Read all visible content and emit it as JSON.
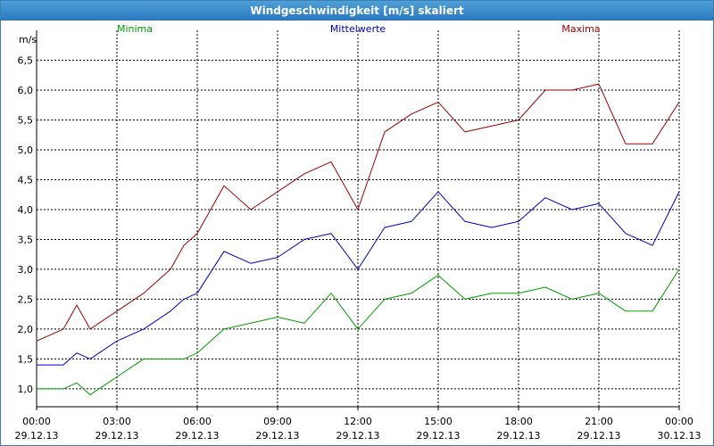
{
  "window": {
    "title": "Windgeschwindigkeit [m/s] skaliert"
  },
  "colors": {
    "minima": "#00a000",
    "mittelwerte": "#0000c8",
    "maxima": "#a00000",
    "grid": "#000000"
  },
  "chart_data": {
    "type": "line",
    "title": "Windgeschwindigkeit [m/s] skaliert",
    "ylabel": "m/s",
    "xlabel": "",
    "ylim": [
      0.7,
      7.0
    ],
    "xlim_hours": [
      0,
      24
    ],
    "grid": true,
    "legend_placement": "top",
    "y_ticks": [
      "1,0",
      "1,5",
      "2,0",
      "2,5",
      "3,0",
      "3,5",
      "4,0",
      "4,5",
      "5,0",
      "5,5",
      "6,0",
      "6,5"
    ],
    "y_tick_values": [
      1.0,
      1.5,
      2.0,
      2.5,
      3.0,
      3.5,
      4.0,
      4.5,
      5.0,
      5.5,
      6.0,
      6.5
    ],
    "x_ticks": [
      {
        "time": "00:00",
        "date": "29.12.13"
      },
      {
        "time": "03:00",
        "date": "29.12.13"
      },
      {
        "time": "06:00",
        "date": "29.12.13"
      },
      {
        "time": "09:00",
        "date": "29.12.13"
      },
      {
        "time": "12:00",
        "date": "29.12.13"
      },
      {
        "time": "15:00",
        "date": "29.12.13"
      },
      {
        "time": "18:00",
        "date": "29.12.13"
      },
      {
        "time": "21:00",
        "date": "29.12.13"
      },
      {
        "time": "00:00",
        "date": "30.12.13"
      }
    ],
    "x_tick_hours": [
      0,
      3,
      6,
      9,
      12,
      15,
      18,
      21,
      24
    ],
    "series": [
      {
        "name": "Minima",
        "key": "minima",
        "x_hours": [
          0.0,
          1.0,
          1.5,
          2.0,
          3.0,
          4.0,
          5.0,
          5.5,
          6.0,
          7.0,
          8.0,
          9.0,
          10.0,
          11.0,
          12.0,
          13.0,
          14.0,
          15.0,
          16.0,
          17.0,
          18.0,
          19.0,
          20.0,
          21.0,
          22.0,
          23.0,
          24.0
        ],
        "values": [
          1.0,
          1.0,
          1.1,
          0.9,
          1.2,
          1.5,
          1.5,
          1.5,
          1.6,
          2.0,
          2.1,
          2.2,
          2.1,
          2.6,
          2.0,
          2.5,
          2.6,
          2.9,
          2.5,
          2.6,
          2.6,
          2.7,
          2.5,
          2.6,
          2.3,
          2.3,
          3.0
        ]
      },
      {
        "name": "Mittelwerte",
        "key": "mittelwerte",
        "x_hours": [
          0.0,
          1.0,
          1.5,
          2.0,
          3.0,
          4.0,
          5.0,
          5.5,
          6.0,
          7.0,
          8.0,
          9.0,
          10.0,
          11.0,
          12.0,
          13.0,
          14.0,
          15.0,
          16.0,
          17.0,
          18.0,
          19.0,
          20.0,
          21.0,
          22.0,
          23.0,
          24.0
        ],
        "values": [
          1.4,
          1.4,
          1.6,
          1.5,
          1.8,
          2.0,
          2.3,
          2.5,
          2.6,
          3.3,
          3.1,
          3.2,
          3.5,
          3.6,
          3.0,
          3.7,
          3.8,
          4.3,
          3.8,
          3.7,
          3.8,
          4.2,
          4.0,
          4.1,
          3.6,
          3.4,
          4.3
        ]
      },
      {
        "name": "Maxima",
        "key": "maxima",
        "x_hours": [
          0.0,
          1.0,
          1.5,
          2.0,
          3.0,
          4.0,
          5.0,
          5.5,
          6.0,
          7.0,
          8.0,
          9.0,
          10.0,
          11.0,
          12.0,
          13.0,
          14.0,
          15.0,
          16.0,
          17.0,
          18.0,
          19.0,
          20.0,
          21.0,
          22.0,
          23.0,
          24.0
        ],
        "values": [
          1.8,
          2.0,
          2.4,
          2.0,
          2.3,
          2.6,
          3.0,
          3.4,
          3.6,
          4.4,
          4.0,
          4.3,
          4.6,
          4.8,
          4.0,
          5.3,
          5.6,
          5.8,
          5.3,
          5.4,
          5.5,
          6.0,
          6.0,
          6.1,
          5.1,
          5.1,
          5.8
        ]
      }
    ]
  }
}
